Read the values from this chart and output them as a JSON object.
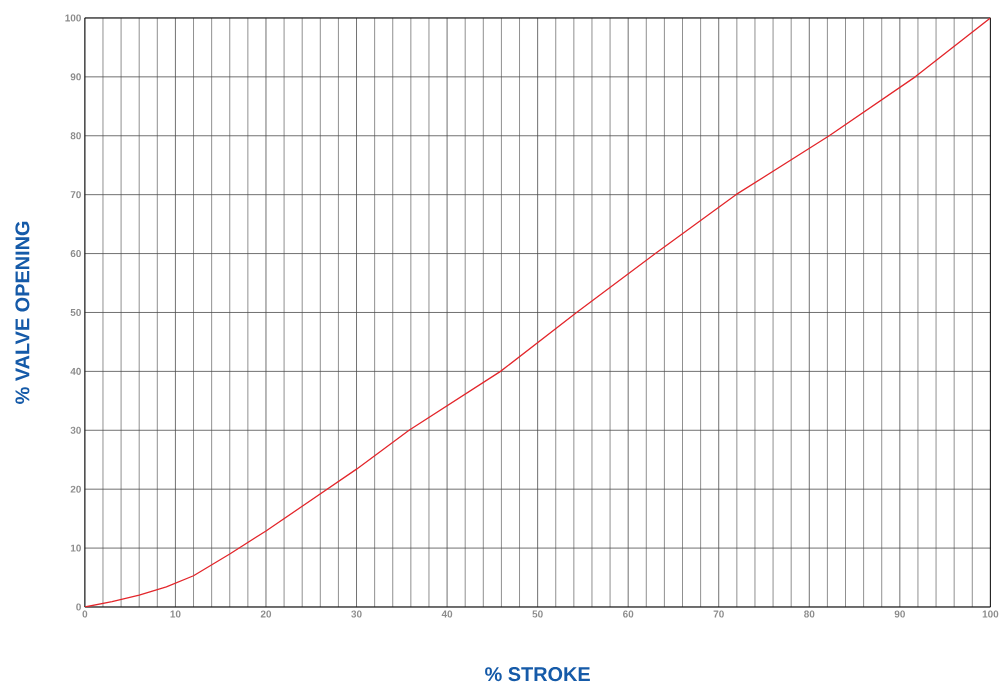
{
  "chart_data": {
    "type": "line",
    "xlabel": "% STROKE",
    "ylabel": "% VALVE OPENING",
    "x": [
      0,
      3,
      6,
      9,
      12,
      16,
      20,
      24,
      30,
      35.8,
      45.9,
      54.3,
      63,
      71.9,
      82.2,
      91.7,
      100
    ],
    "series": [
      {
        "color": "#e3262b",
        "values": [
          0,
          0.9,
          2,
          3.4,
          5.3,
          9,
          12.9,
          17.1,
          23.4,
          30,
          40,
          50,
          60,
          70,
          80,
          90,
          100
        ]
      }
    ],
    "xlim": [
      0,
      100
    ],
    "ylim": [
      0,
      100
    ],
    "xticks": [
      0,
      10,
      20,
      30,
      40,
      50,
      60,
      70,
      80,
      90,
      100
    ],
    "yticks": [
      0,
      10,
      20,
      30,
      40,
      50,
      60,
      70,
      80,
      90,
      100
    ],
    "grid": true,
    "marker": "none",
    "line_style": "solid"
  }
}
